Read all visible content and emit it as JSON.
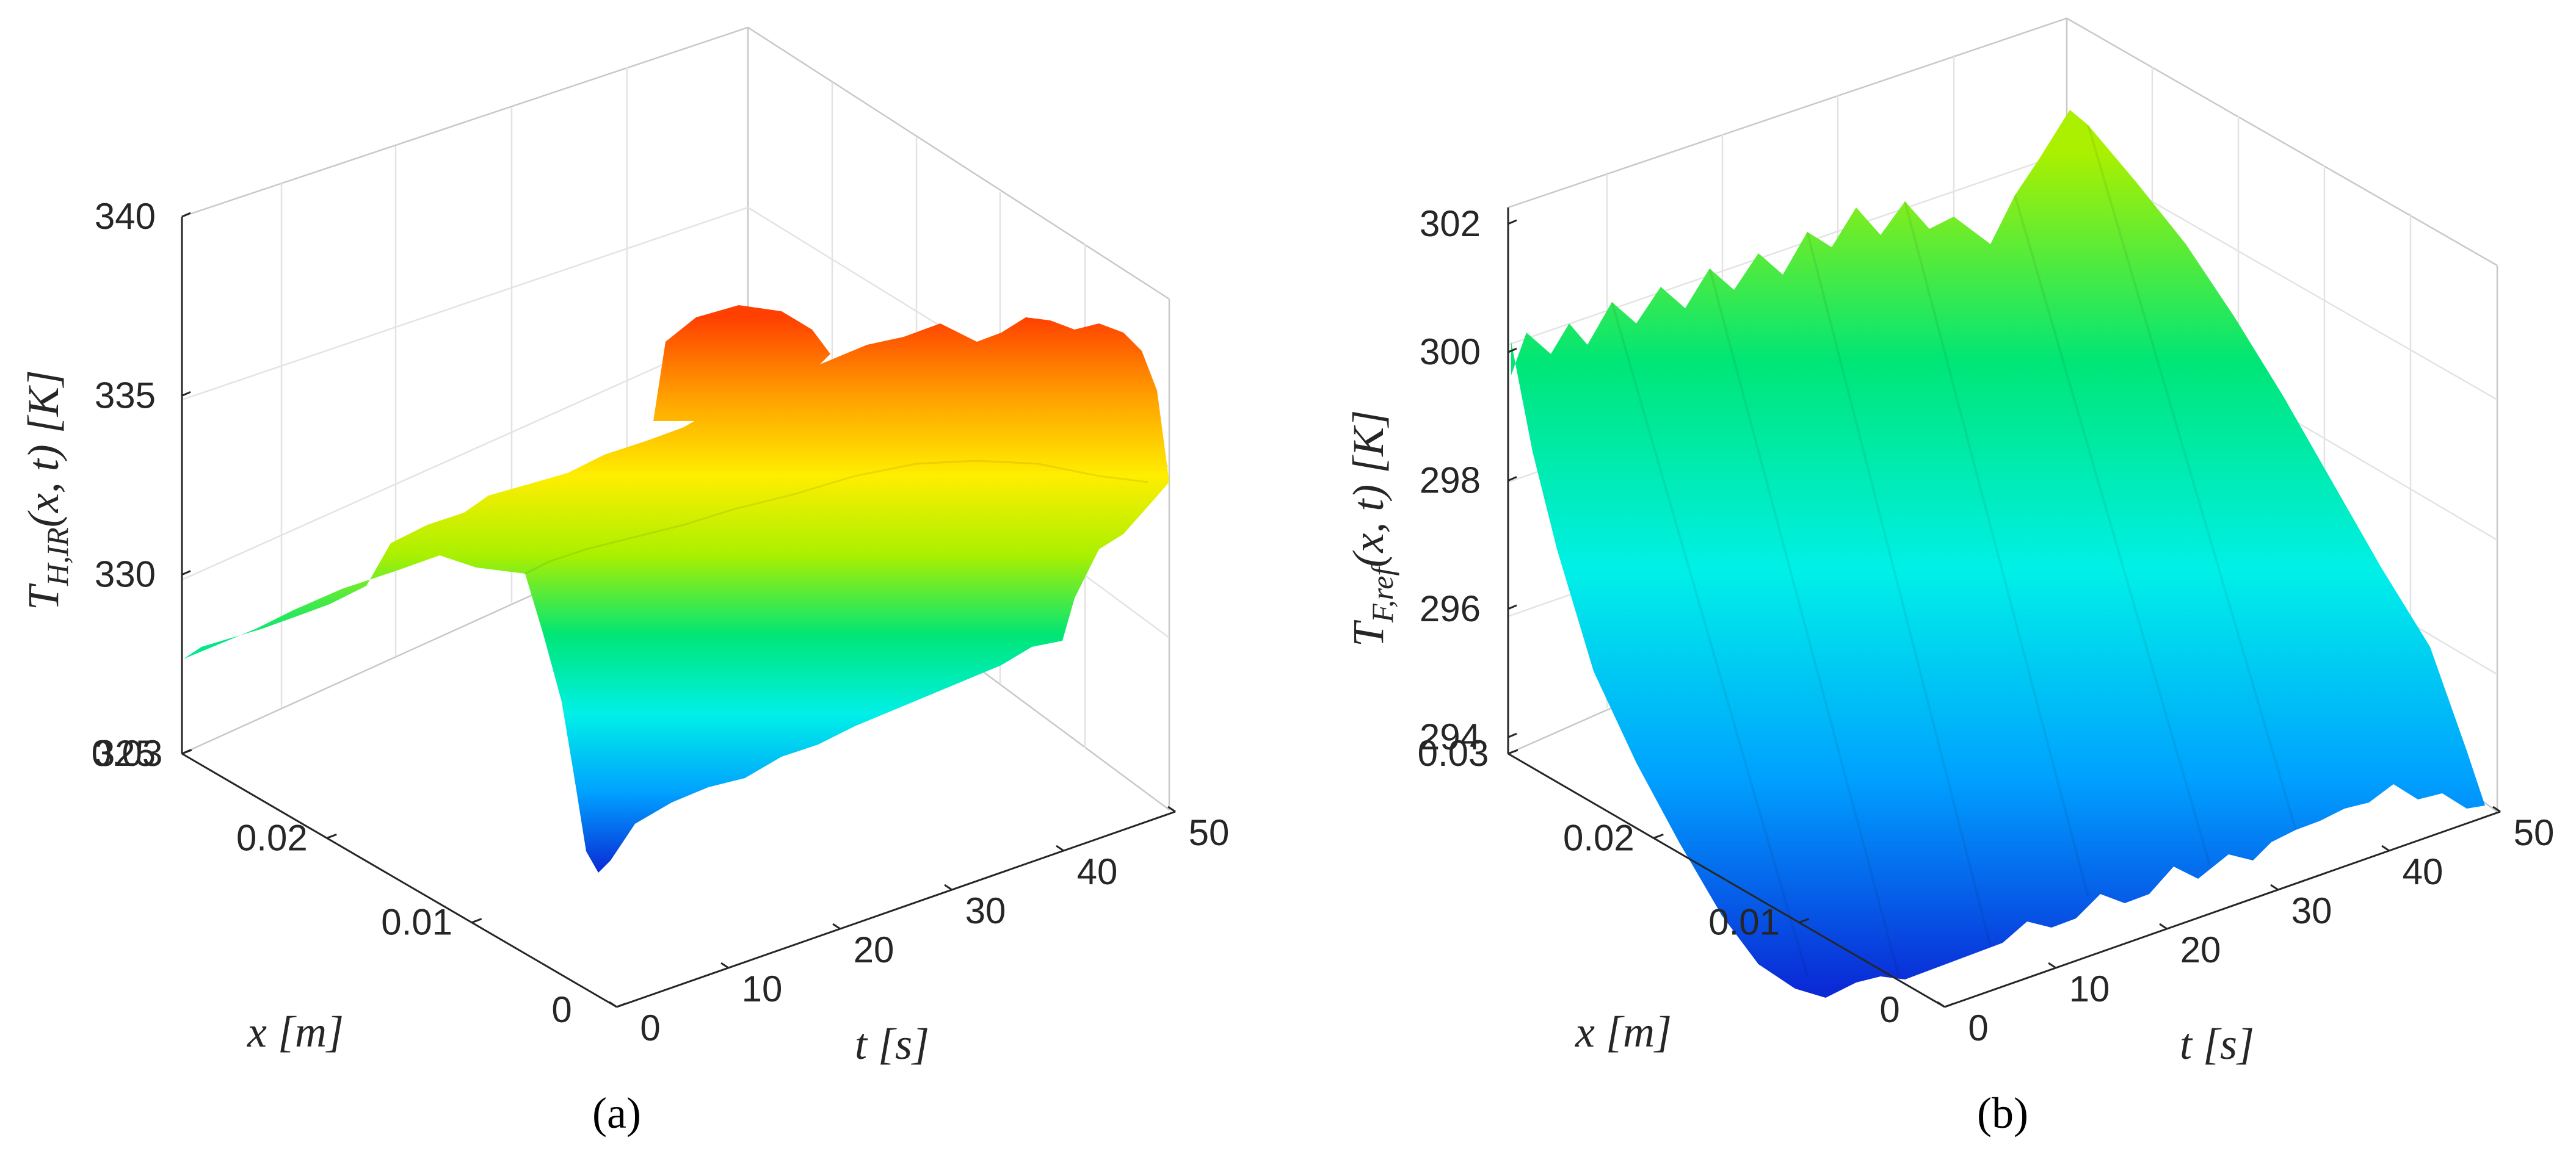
{
  "chart_data": [
    {
      "type": "surface",
      "panel_label": "(a)",
      "zlabel": "T_{H,IR}(x,t) [K]",
      "zlabel_text": {
        "main": "T",
        "sub": "H,IR",
        "rest": "(x, t) [K]"
      },
      "xlabel": "x [m]",
      "ylabel": "t [s]",
      "x_ticks": [
        "0",
        "0.01",
        "0.02",
        "0.03"
      ],
      "t_ticks": [
        "0",
        "10",
        "20",
        "30",
        "40",
        "50"
      ],
      "z_ticks": [
        "325",
        "330",
        "335",
        "340"
      ],
      "x_range": [
        0,
        0.03
      ],
      "t_range": [
        0,
        50
      ],
      "z_range": [
        325,
        340
      ],
      "colormap": [
        "#0a2ad6",
        "#00a0ff",
        "#00f0e8",
        "#00e676",
        "#aaf000",
        "#ffee00",
        "#ffa000",
        "#ff4000"
      ],
      "description": "Temperature rises from ~327.5 K at the x=0.03 edge to ~332-334 K across the plate; values increase with time up to ~336 K peak near t=45 s."
    },
    {
      "type": "surface",
      "panel_label": "(b)",
      "zlabel": "T_{F,ref}(x,t) [K]",
      "zlabel_text": {
        "main": "T",
        "sub": "F,ref",
        "rest": "(x, t) [K]"
      },
      "xlabel": "x [m]",
      "ylabel": "t [s]",
      "x_ticks": [
        "0",
        "0.01",
        "0.02",
        "0.03"
      ],
      "t_ticks": [
        "0",
        "10",
        "20",
        "30",
        "40",
        "50"
      ],
      "z_ticks": [
        "294",
        "296",
        "298",
        "300",
        "302"
      ],
      "x_range": [
        0,
        0.03
      ],
      "t_range": [
        0,
        50
      ],
      "z_range": [
        294,
        302
      ],
      "colormap": [
        "#0a2ad6",
        "#00a0ff",
        "#00f0e8",
        "#00e676",
        "#aaf000"
      ],
      "description": "Temperature ~299-302 K at x=0.03 decreasing to ~294 K at x=0, with ripples along t."
    }
  ]
}
